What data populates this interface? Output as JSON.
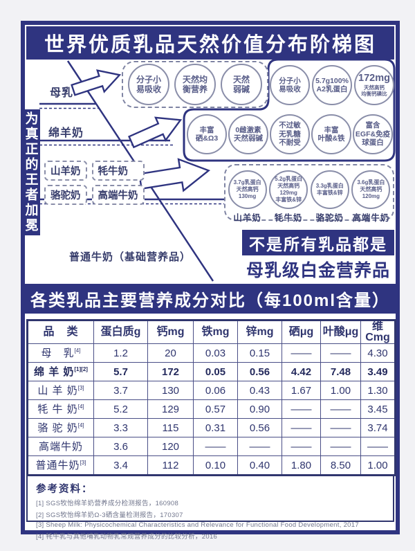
{
  "colors": {
    "navy": "#2f3480",
    "bubble_border": "#8a8ea9",
    "bubble_text": "#585d88",
    "table_text": "#2f356e"
  },
  "title": "世界优质乳品天然价值分布阶梯图",
  "ladder": {
    "side_label": "为真正的王者加冕",
    "tier1_label": "母乳",
    "tier2_label": "绵羊奶",
    "tier3_labels": [
      "山羊奶",
      "牦牛奶",
      "骆驼奶",
      "高端牛奶"
    ],
    "tier4_label": "普通牛奶（基础营养品）",
    "group_breast": [
      "分子小\n易吸收",
      "天然均\n衡营养",
      "天然\n弱碱"
    ],
    "group_sheep_top": [
      "分子小\n易吸收",
      "5.7g100%\nA2乳蛋白",
      "172mg||天然高钙\n均衡钙磷比"
    ],
    "group_sheep_bottom": [
      "丰富\n硒&Ω3",
      "0雌激素\n天然弱碱",
      "不过敏\n无乳糖\n不耐受",
      "丰富\n叶酸&铁",
      "富含\nEGF&免疫\n球蛋白"
    ],
    "group_others": [
      {
        "bubble": "3.7g乳蛋白\n天然高钙\n130mg",
        "label": "山羊奶"
      },
      {
        "bubble": "5.2g乳蛋白\n天然高钙129mg\n丰富铁&锌",
        "label": "牦牛奶"
      },
      {
        "bubble": "3.3g乳蛋白\n丰富铁&锌",
        "label": "骆驼奶"
      },
      {
        "bubble": "3.6g乳蛋白\n天然高钙\n120mg",
        "label": "高端牛奶"
      }
    ],
    "slogan_line1": "不是所有乳品都是",
    "slogan_line2": "母乳级白金营养品"
  },
  "table": {
    "section_title": "各类乳品主要营养成分对比（每100ml含量）",
    "columns": [
      "品　类",
      "蛋白质g",
      "钙mg",
      "铁mg",
      "锌mg",
      "硒μg",
      "叶酸μg",
      "维Cmg"
    ],
    "rows": [
      {
        "name": "母　乳",
        "refs": "[4]",
        "bold": false,
        "values": [
          "1.2",
          "20",
          "0.03",
          "0.15",
          "——",
          "——",
          "4.30"
        ]
      },
      {
        "name": "绵 羊 奶",
        "refs": "[1][2]",
        "bold": true,
        "values": [
          "5.7",
          "172",
          "0.05",
          "0.56",
          "4.42",
          "7.48",
          "3.49"
        ]
      },
      {
        "name": "山 羊 奶",
        "refs": "[3]",
        "bold": false,
        "values": [
          "3.7",
          "130",
          "0.06",
          "0.43",
          "1.67",
          "1.00",
          "1.30"
        ]
      },
      {
        "name": "牦 牛 奶",
        "refs": "[4]",
        "bold": false,
        "values": [
          "5.2",
          "129",
          "0.57",
          "0.90",
          "——",
          "——",
          "3.45"
        ]
      },
      {
        "name": "骆 驼 奶",
        "refs": "[4]",
        "bold": false,
        "values": [
          "3.3",
          "115",
          "0.31",
          "0.56",
          "——",
          "——",
          "3.74"
        ]
      },
      {
        "name": "高端牛奶",
        "refs": "",
        "bold": false,
        "values": [
          "3.6",
          "120",
          "——",
          "——",
          "——",
          "——",
          "——"
        ]
      },
      {
        "name": "普通牛奶",
        "refs": "[3]",
        "bold": false,
        "values": [
          "3.4",
          "112",
          "0.10",
          "0.40",
          "1.80",
          "8.50",
          "1.00"
        ]
      }
    ]
  },
  "references": {
    "title": "参考资料：",
    "items": [
      "[1] SGS牧怡绵羊奶营养成分检测报告，160908",
      "[2] SGS牧怡绵羊奶Ω-3硒含量检测报告，170307",
      "[3] Sheep Milk: Physicochemical Characteristics and Relevance for Functional Food Development, 2017",
      "[4] 牦牛乳与其他哺乳动物乳常规营养成分的比较分析，2016"
    ]
  }
}
